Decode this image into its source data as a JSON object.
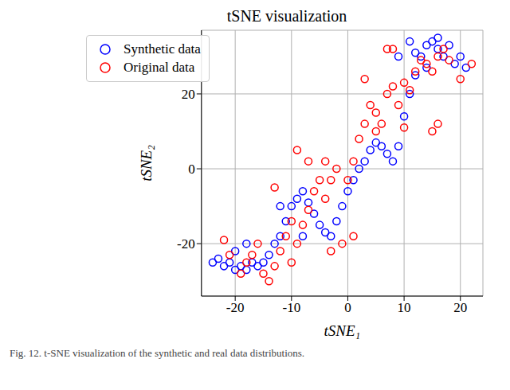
{
  "chart_data": {
    "type": "scatter",
    "title": "tSNE visualization",
    "x_label": "tSNE₁",
    "y_label": "tSNE₂",
    "annotations": [
      "Fig. 12. t-SNE visualization of the synthetic and real data distributions."
    ],
    "xlim": [
      -26,
      24
    ],
    "ylim": [
      -34,
      37
    ],
    "xticks": [
      -20,
      -10,
      0,
      10,
      20
    ],
    "yticks": [
      -20,
      0,
      20
    ],
    "grid": true,
    "legend": "upper left",
    "series": [
      {
        "name": "Synthetic data",
        "color": "#0000ff",
        "marker": "hollow circle",
        "x": [
          -24,
          -23,
          -22,
          -21,
          -20,
          -19,
          -18,
          -17,
          -16,
          -15,
          -14,
          -13,
          -12,
          -11,
          -10,
          -9,
          -8,
          -7,
          -6,
          -5,
          -4,
          -3,
          -2,
          -1,
          0,
          1,
          2,
          3,
          4,
          5,
          6,
          7,
          8,
          9,
          10,
          11,
          12,
          13,
          14,
          15,
          16,
          17,
          18,
          19,
          20,
          21,
          -20,
          -18,
          -8,
          -12,
          9,
          11,
          12,
          16,
          14
        ],
        "values": [
          -25,
          -24,
          -26,
          -25,
          -27,
          -26,
          -27,
          -25,
          -26,
          -25,
          -23,
          -20,
          -18,
          -14,
          -10,
          -8,
          -6,
          -9,
          -12,
          -15,
          -17,
          -18,
          -14,
          -10,
          -6,
          -3,
          0,
          2,
          5,
          7,
          6,
          4,
          2,
          6,
          14,
          20,
          25,
          30,
          33,
          34,
          32,
          30,
          33,
          28,
          30,
          27,
          -22,
          -20,
          -18,
          -10,
          30,
          34,
          31,
          35,
          27
        ]
      },
      {
        "name": "Original data",
        "color": "#ff0000",
        "marker": "hollow circle",
        "x": [
          -22,
          -21,
          -19,
          -17,
          -16,
          -15,
          -14,
          -13,
          -12,
          -11,
          -10,
          -9,
          -8,
          -7,
          -6,
          -5,
          -4,
          -3,
          -2,
          -1,
          0,
          1,
          2,
          3,
          4,
          5,
          6,
          7,
          8,
          9,
          10,
          11,
          12,
          13,
          14,
          15,
          16,
          17,
          18,
          20,
          22,
          15,
          16,
          7,
          8,
          -13,
          -9,
          -7,
          -4,
          3,
          -10,
          -3,
          1,
          5,
          10,
          -18
        ],
        "values": [
          -19,
          -23,
          -28,
          -23,
          -20,
          -28,
          -30,
          -26,
          -22,
          -18,
          -25,
          -20,
          -15,
          -11,
          -6,
          -3,
          -8,
          -3,
          0,
          -20,
          -3,
          2,
          8,
          12,
          17,
          15,
          12,
          20,
          22,
          17,
          23,
          21,
          26,
          29,
          28,
          26,
          30,
          32,
          29,
          24,
          28,
          10,
          12,
          32,
          32,
          -5,
          5,
          2,
          2,
          24,
          -14,
          -22,
          -18,
          10,
          11,
          -25
        ]
      }
    ]
  }
}
